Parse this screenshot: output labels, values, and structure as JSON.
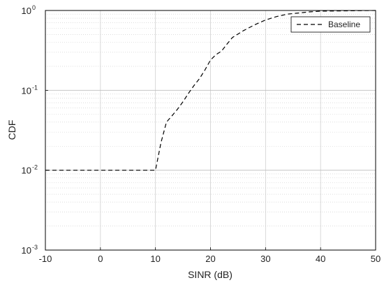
{
  "chart_data": {
    "type": "line",
    "xlabel": "SINR (dB)",
    "ylabel": "CDF",
    "xlim": [
      -10,
      50
    ],
    "ylim": [
      0.001,
      1
    ],
    "yscale": "log",
    "grid": true,
    "legend_position": "top-right",
    "x_ticks": [
      "-10",
      "0",
      "10",
      "20",
      "30",
      "40",
      "50"
    ],
    "y_ticks": [
      {
        "base": "10",
        "exp": "-3"
      },
      {
        "base": "10",
        "exp": "-2"
      },
      {
        "base": "10",
        "exp": "-1"
      },
      {
        "base": "10",
        "exp": "0"
      }
    ],
    "series": [
      {
        "name": "Baseline",
        "line_style": "dashed",
        "color": "#000000",
        "x": [
          -10,
          10,
          11,
          12,
          13,
          14,
          15,
          16,
          17,
          18,
          19,
          20,
          21,
          22,
          23,
          24,
          26,
          28,
          30,
          32,
          34,
          36,
          38,
          40,
          45,
          50
        ],
        "y": [
          0.01,
          0.01,
          0.022,
          0.04,
          0.048,
          0.058,
          0.072,
          0.092,
          0.115,
          0.14,
          0.18,
          0.24,
          0.28,
          0.31,
          0.38,
          0.46,
          0.56,
          0.66,
          0.76,
          0.84,
          0.9,
          0.93,
          0.96,
          0.98,
          0.99,
          1.0
        ]
      }
    ]
  }
}
